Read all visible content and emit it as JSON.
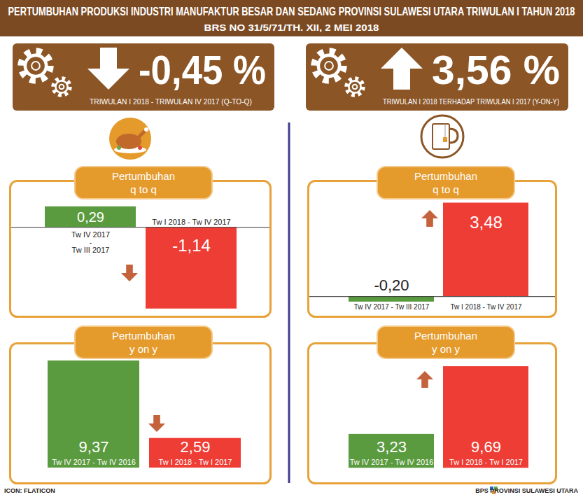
{
  "title": "PERTUMBUHAN PRODUKSI INDUSTRI MANUFAKTUR BESAR DAN SEDANG PROVINSI SULAWESI UTARA TRIWULAN I TAHUN 2018",
  "subtitle": "BRS NO 31/5/71/TH. XII, 2 MEI 2018",
  "headlines": [
    {
      "value": -0.45,
      "label": "-0,45 %",
      "text": "TRIWULAN I 2018 - TRIWULAN IV 2017 (Q-TO-Q)"
    },
    {
      "value": 3.56,
      "label": "3,56 %",
      "text": "TRIWULAN I 2018 TERHADAP TRIWULAN I 2017 (Y-ON-Y)"
    }
  ],
  "chart_data": [
    {
      "type": "bar",
      "title": "Pertumbuhan",
      "subtitle": "q to q",
      "categories": [
        "Tw IV 2017 - Tw III 2017",
        "Tw I 2018 - Tw IV 2017"
      ],
      "values": [
        0.29,
        -1.14
      ],
      "value_labels": [
        "0,29",
        "-1,14"
      ],
      "colors": [
        "#5b9b3f",
        "#ee3d35"
      ],
      "ylim": [
        -1.25,
        0.65
      ],
      "yticks": [],
      "tick_labels": false,
      "data_labels": true
    },
    {
      "type": "bar",
      "title": "Pertumbuhan",
      "subtitle": "y on y",
      "categories": [
        "Tw IV 2017 - Tw IV 2016",
        "Tw I 2018 - Tw I 2017"
      ],
      "values": [
        9.37,
        2.59
      ],
      "value_labels": [
        "9,37",
        "2,59"
      ],
      "colors": [
        "#5b9b3f",
        "#ee3d35"
      ],
      "ylim": [
        -1.35,
        10.9
      ],
      "yticks": [],
      "tick_labels": false,
      "data_labels": true
    },
    {
      "type": "bar",
      "title": "Pertumbuhan",
      "subtitle": "q to q",
      "categories": [
        "Tw IV 2017 - Tw III 2017",
        "Tw I 2018 - Tw IV 2017"
      ],
      "values": [
        -0.2,
        3.48
      ],
      "value_labels": [
        "-0,20",
        "3,48"
      ],
      "colors": [
        "#5b9b3f",
        "#ee3d35"
      ],
      "ylim": [
        -0.75,
        4.3
      ],
      "yticks": [],
      "tick_labels": false,
      "data_labels": true
    },
    {
      "type": "bar",
      "title": "Pertumbuhan",
      "subtitle": "y on y",
      "categories": [
        "Tw IV 2017 - Tw IV 2016",
        "Tw I 2018 - Tw I 2017"
      ],
      "values": [
        3.23,
        9.69
      ],
      "value_labels": [
        "3,23",
        "9,69"
      ],
      "colors": [
        "#5b9b3f",
        "#ee3d35"
      ],
      "ylim": [
        -1.45,
        11.9
      ],
      "yticks": [],
      "tick_labels": false,
      "data_labels": true
    }
  ],
  "footer": {
    "left": "ICON: FLATICON",
    "right": "BPS PROVINSI SULAWESI UTARA"
  }
}
